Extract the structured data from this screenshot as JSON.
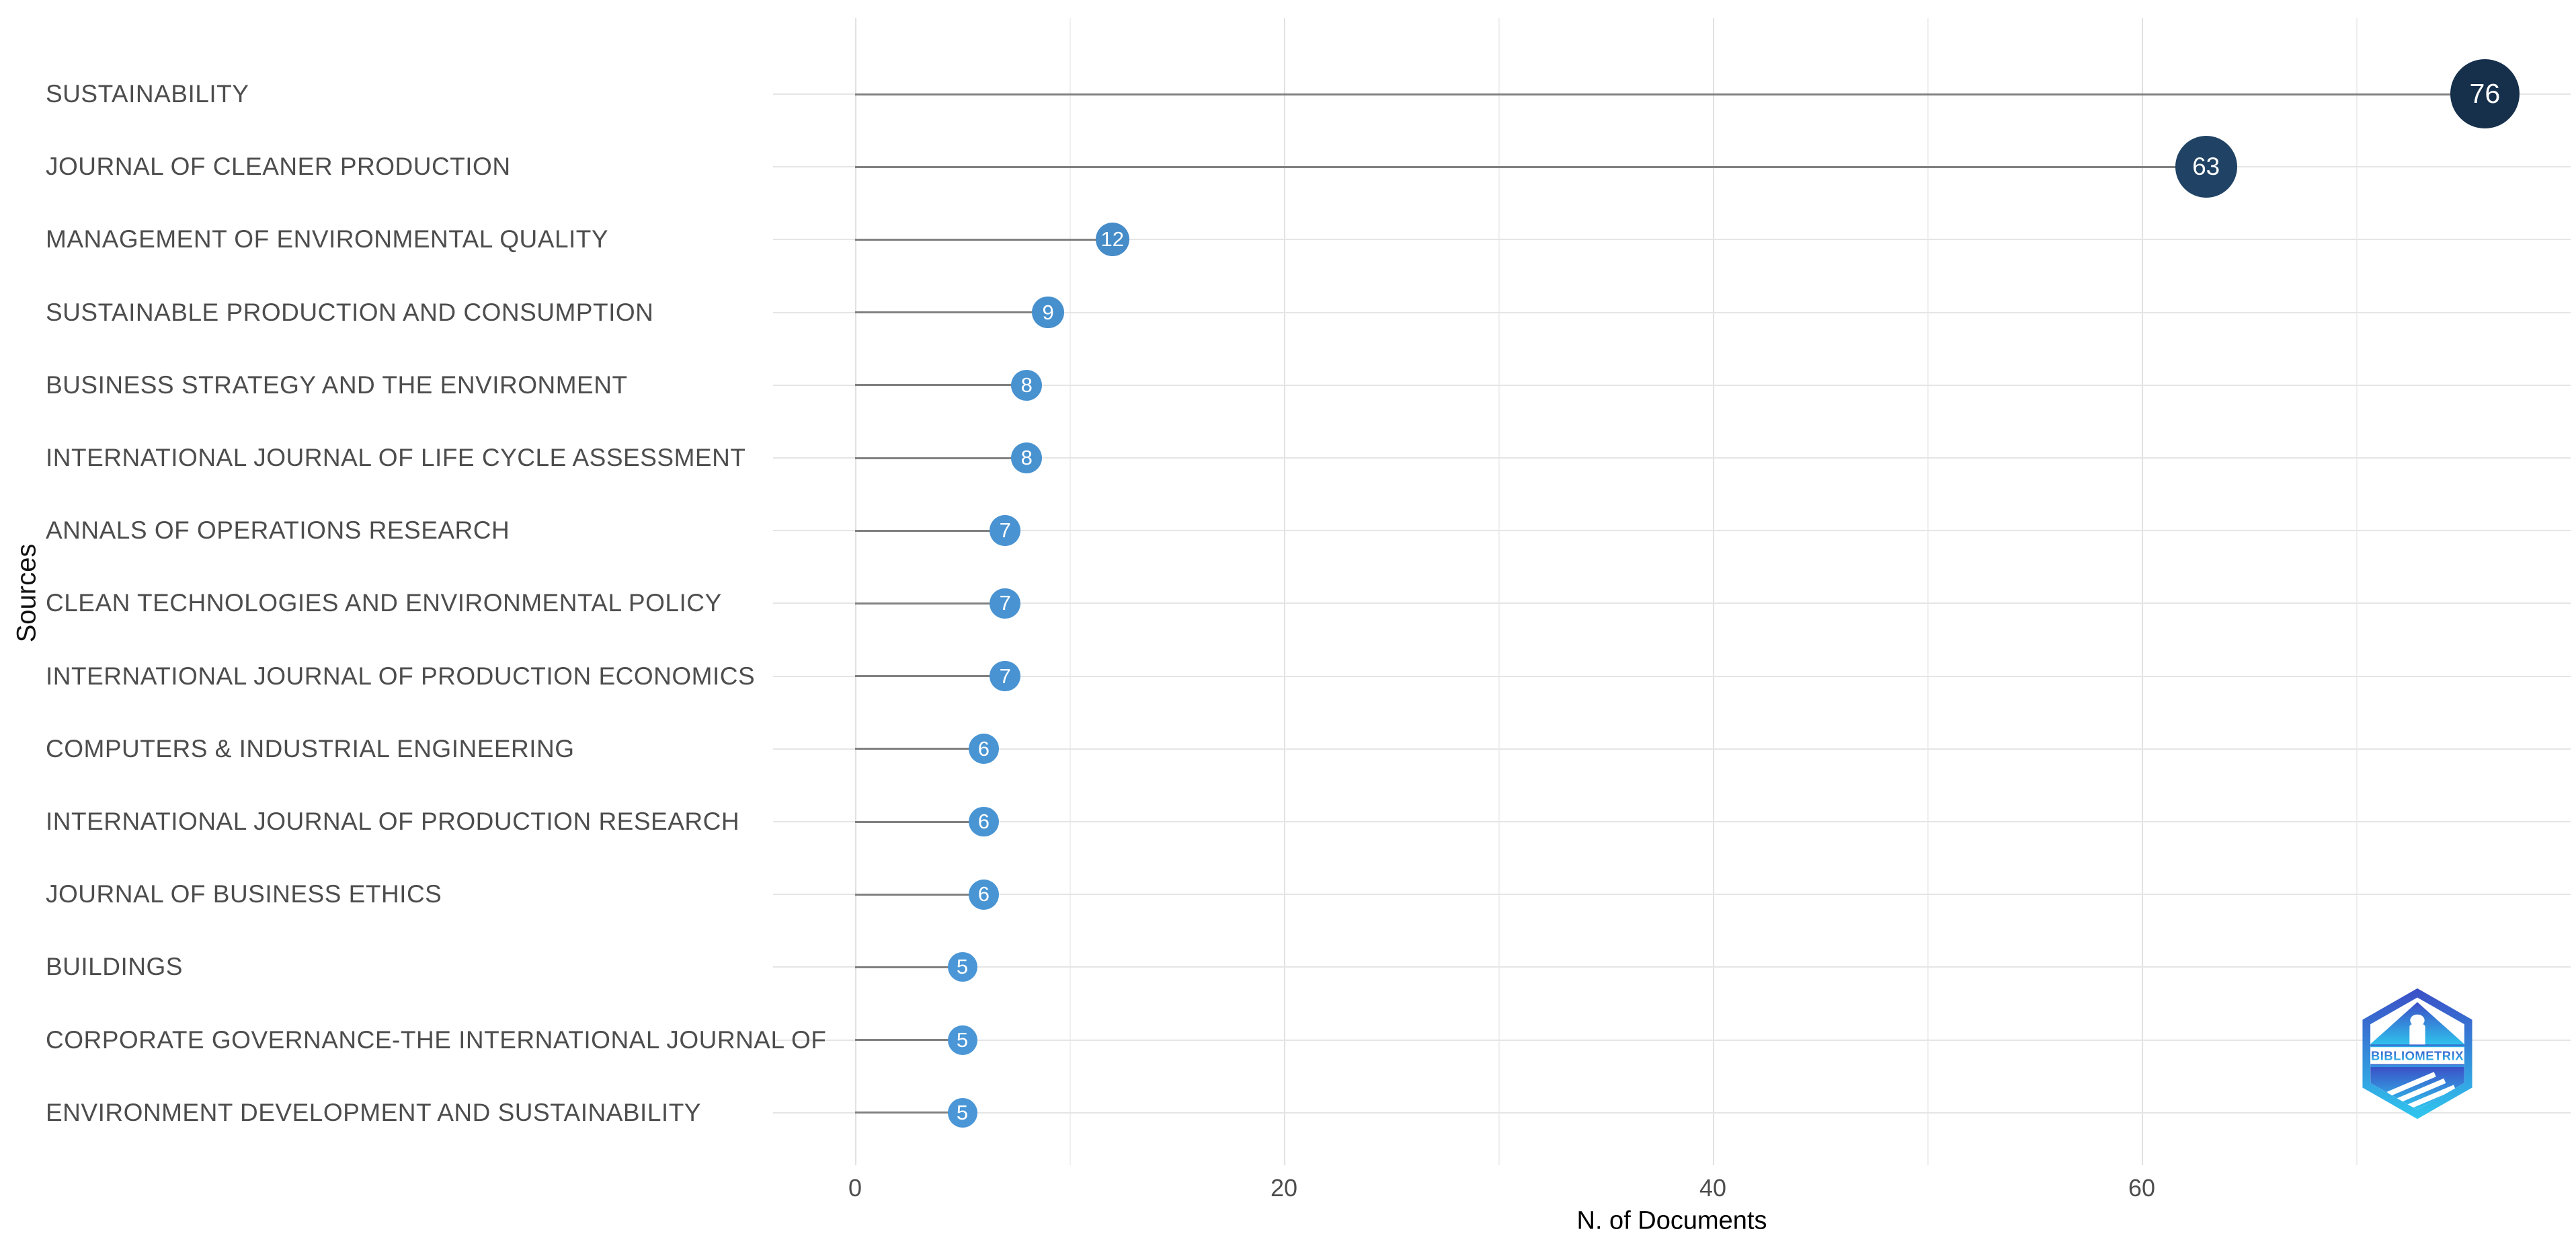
{
  "chart_data": {
    "type": "bar",
    "variant": "horizontal-lollipop",
    "title": "",
    "xlabel": "N. of Documents",
    "ylabel": "Sources",
    "categories": [
      "SUSTAINABILITY",
      "JOURNAL OF CLEANER PRODUCTION",
      "MANAGEMENT OF ENVIRONMENTAL QUALITY",
      "SUSTAINABLE PRODUCTION AND CONSUMPTION",
      "BUSINESS STRATEGY AND THE ENVIRONMENT",
      "INTERNATIONAL JOURNAL OF LIFE CYCLE ASSESSMENT",
      "ANNALS OF OPERATIONS RESEARCH",
      "CLEAN TECHNOLOGIES AND ENVIRONMENTAL POLICY",
      "INTERNATIONAL JOURNAL OF PRODUCTION ECONOMICS",
      "COMPUTERS & INDUSTRIAL ENGINEERING",
      "INTERNATIONAL JOURNAL OF PRODUCTION RESEARCH",
      "JOURNAL OF BUSINESS ETHICS",
      "BUILDINGS",
      "CORPORATE GOVERNANCE-THE INTERNATIONAL JOURNAL OF",
      "ENVIRONMENT DEVELOPMENT AND SUSTAINABILITY"
    ],
    "values": [
      76,
      63,
      12,
      9,
      8,
      8,
      7,
      7,
      7,
      6,
      6,
      6,
      5,
      5,
      5
    ],
    "xlim": [
      0,
      79
    ],
    "x_major_ticks": [
      0,
      20,
      40,
      60
    ],
    "x_minor_gridlines": [
      10,
      30,
      50,
      70
    ],
    "grid": true,
    "legend_position": "none",
    "colors": {
      "dot_low": "#4A96D6",
      "dot_high": "#16304C",
      "dot_label": "#FFFFFF",
      "stem": "#808080",
      "grid_major": "#E2E2E2",
      "grid_minor": "#EFEFEF",
      "axis_text": "#4D4D4D",
      "axis_title": "#000000"
    }
  },
  "logo": {
    "text": "BIBLIOMETRIX",
    "color_top": "#3B4EC6",
    "color_bottom": "#2FC7EE"
  }
}
